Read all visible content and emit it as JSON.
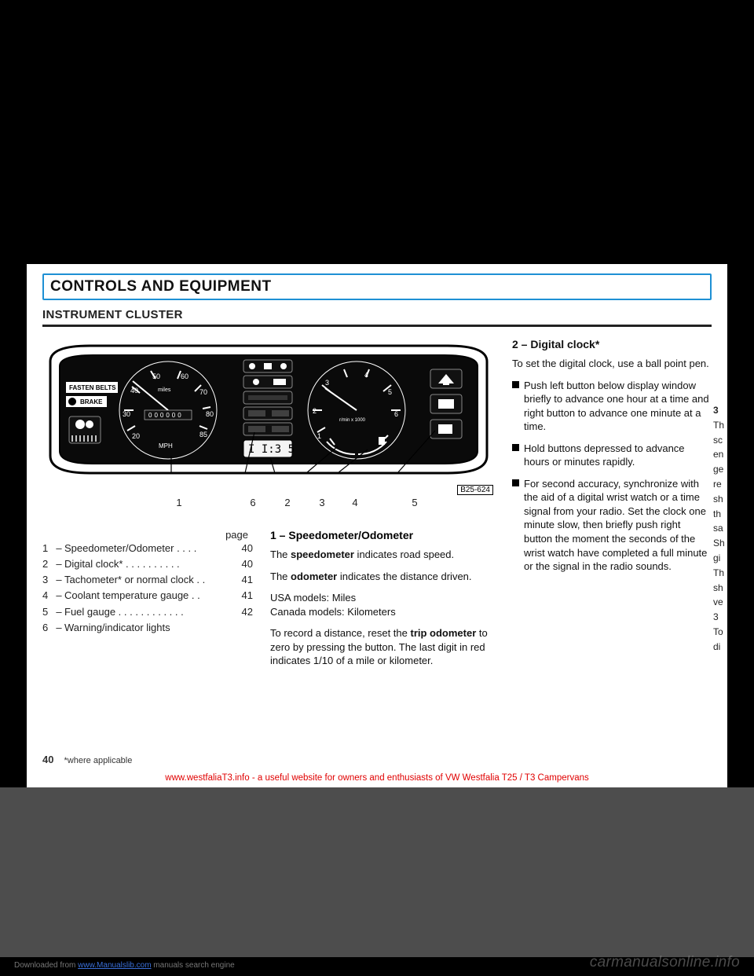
{
  "title": "CONTROLS AND EQUIPMENT",
  "subtitle": "INSTRUMENT CLUSTER",
  "cluster": {
    "callout_numbers": [
      "1",
      "6",
      "2",
      "3",
      "4",
      "5"
    ],
    "image_code": "B25-624",
    "clock_display": "I  I:3 5",
    "speedo_labels": [
      "20",
      "30",
      "40",
      "50",
      "60",
      "70",
      "80",
      "85"
    ],
    "speedo_unit_top": "miles",
    "speedo_unit_bottom": "MPH",
    "odometer_digits": "0 0 0 0 0 0",
    "tach_labels": [
      "1",
      "2",
      "3",
      "4",
      "5",
      "6"
    ],
    "tach_sub": "rpm x 1000",
    "belt_text": "FASTEN BELTS",
    "brake_text": "BRAKE"
  },
  "toc": {
    "head": "page",
    "rows": [
      {
        "n": "1",
        "label": "Speedometer/Odometer  .  .  .  .",
        "pg": "40"
      },
      {
        "n": "2",
        "label": "Digital clock*   .  .  .  .  .  .  .  .  .  .",
        "pg": "40"
      },
      {
        "n": "3",
        "label": "Tachometer* or normal clock  .  .",
        "pg": "41"
      },
      {
        "n": "4",
        "label": "Coolant temperature gauge   .  .",
        "pg": "41"
      },
      {
        "n": "5",
        "label": "Fuel gauge   .  .  .  .  .  .  .  .  .  .  .  .",
        "pg": "42"
      },
      {
        "n": "6",
        "label": "Warning/indicator lights",
        "pg": ""
      }
    ]
  },
  "mid": {
    "h": "1 – Speedometer/Odometer",
    "p1a": "The ",
    "p1b": "speedometer",
    "p1c": " indicates road speed.",
    "p2a": "The ",
    "p2b": "odometer",
    "p2c": " indicates the distance driven.",
    "p3": "USA models: Miles",
    "p4": "Canada models: Kilometers",
    "p5a": "To record a distance, reset the ",
    "p5b": "trip odometer",
    "p5c": " to zero by pressing the button. The last digit in red indicates 1/10 of a mile or kilometer."
  },
  "right": {
    "h": "2 – Digital clock*",
    "p1": "To set the digital clock, use a ball point pen.",
    "b1": "Push left button below display window briefly to advance one hour at a time and right button to advance one minute at a time.",
    "b2": "Hold buttons depressed to advance hours or minutes rapidly.",
    "b3": "For second accuracy, synchronize with the aid of a digital wrist watch or a time signal from your radio. Set the clock one minute slow, then briefly push right button the moment the seconds of the wrist watch have completed a full minute or the signal in the radio sounds."
  },
  "cut_col": {
    "h": "3",
    "lines": [
      "Th",
      "sc",
      "en",
      "ge",
      "re",
      "sh",
      "th",
      "sa",
      "",
      "Sh",
      "gi",
      "",
      "Th",
      "sh",
      "ve",
      "",
      "3",
      "",
      "To",
      "di"
    ]
  },
  "footer": {
    "page_num": "40",
    "note": "*where applicable"
  },
  "redline": "www.westfaliaT3.info - a useful website for owners and enthusiasts of VW Westfalia T25 / T3 Campervans",
  "watermark": "carmanualsonline.info",
  "download_prefix": "Downloaded from ",
  "download_link": "www.Manualslib.com",
  "download_suffix": " manuals search engine"
}
